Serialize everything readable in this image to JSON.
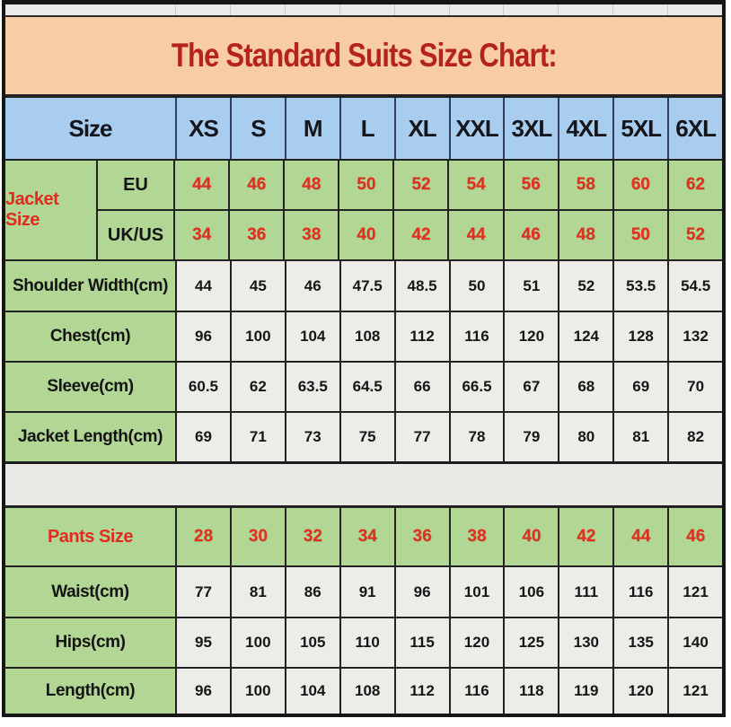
{
  "title": "The Standard Suits Size Chart:",
  "colors": {
    "title_bg": "#f8cda6",
    "title_text": "#b5231c",
    "header_bg": "#a9cdef",
    "green_bg": "#b2d694",
    "data_cell_bg": "#edece8",
    "separator_bg": "#e9e9e5",
    "red_accent": "#e22f1f",
    "grid_line": "#222222"
  },
  "table": {
    "header": {
      "size_label": "Size",
      "columns": [
        "XS",
        "S",
        "M",
        "L",
        "XL",
        "XXL",
        "3XL",
        "4XL",
        "5XL",
        "6XL"
      ]
    },
    "jacket": {
      "label": "Jacket Size",
      "rows": [
        {
          "label": "EU",
          "values": [
            "44",
            "46",
            "48",
            "50",
            "52",
            "54",
            "56",
            "58",
            "60",
            "62"
          ]
        },
        {
          "label": "UK/US",
          "values": [
            "34",
            "36",
            "38",
            "40",
            "42",
            "44",
            "46",
            "48",
            "50",
            "52"
          ]
        }
      ]
    },
    "jacket_measurements": [
      {
        "label": "Shoulder Width(cm)",
        "values": [
          "44",
          "45",
          "46",
          "47.5",
          "48.5",
          "50",
          "51",
          "52",
          "53.5",
          "54.5"
        ]
      },
      {
        "label": "Chest(cm)",
        "values": [
          "96",
          "100",
          "104",
          "108",
          "112",
          "116",
          "120",
          "124",
          "128",
          "132"
        ]
      },
      {
        "label": "Sleeve(cm)",
        "values": [
          "60.5",
          "62",
          "63.5",
          "64.5",
          "66",
          "66.5",
          "67",
          "68",
          "69",
          "70"
        ]
      },
      {
        "label": "Jacket Length(cm)",
        "values": [
          "69",
          "71",
          "73",
          "75",
          "77",
          "78",
          "79",
          "80",
          "81",
          "82"
        ]
      }
    ],
    "pants": {
      "label": "Pants Size",
      "values": [
        "28",
        "30",
        "32",
        "34",
        "36",
        "38",
        "40",
        "42",
        "44",
        "46"
      ]
    },
    "pants_measurements": [
      {
        "label": "Waist(cm)",
        "values": [
          "77",
          "81",
          "86",
          "91",
          "96",
          "101",
          "106",
          "111",
          "116",
          "121"
        ]
      },
      {
        "label": "Hips(cm)",
        "values": [
          "95",
          "100",
          "105",
          "110",
          "115",
          "120",
          "125",
          "130",
          "135",
          "140"
        ]
      },
      {
        "label": "Length(cm)",
        "values": [
          "96",
          "100",
          "104",
          "108",
          "112",
          "116",
          "118",
          "119",
          "120",
          "121"
        ]
      }
    ]
  }
}
